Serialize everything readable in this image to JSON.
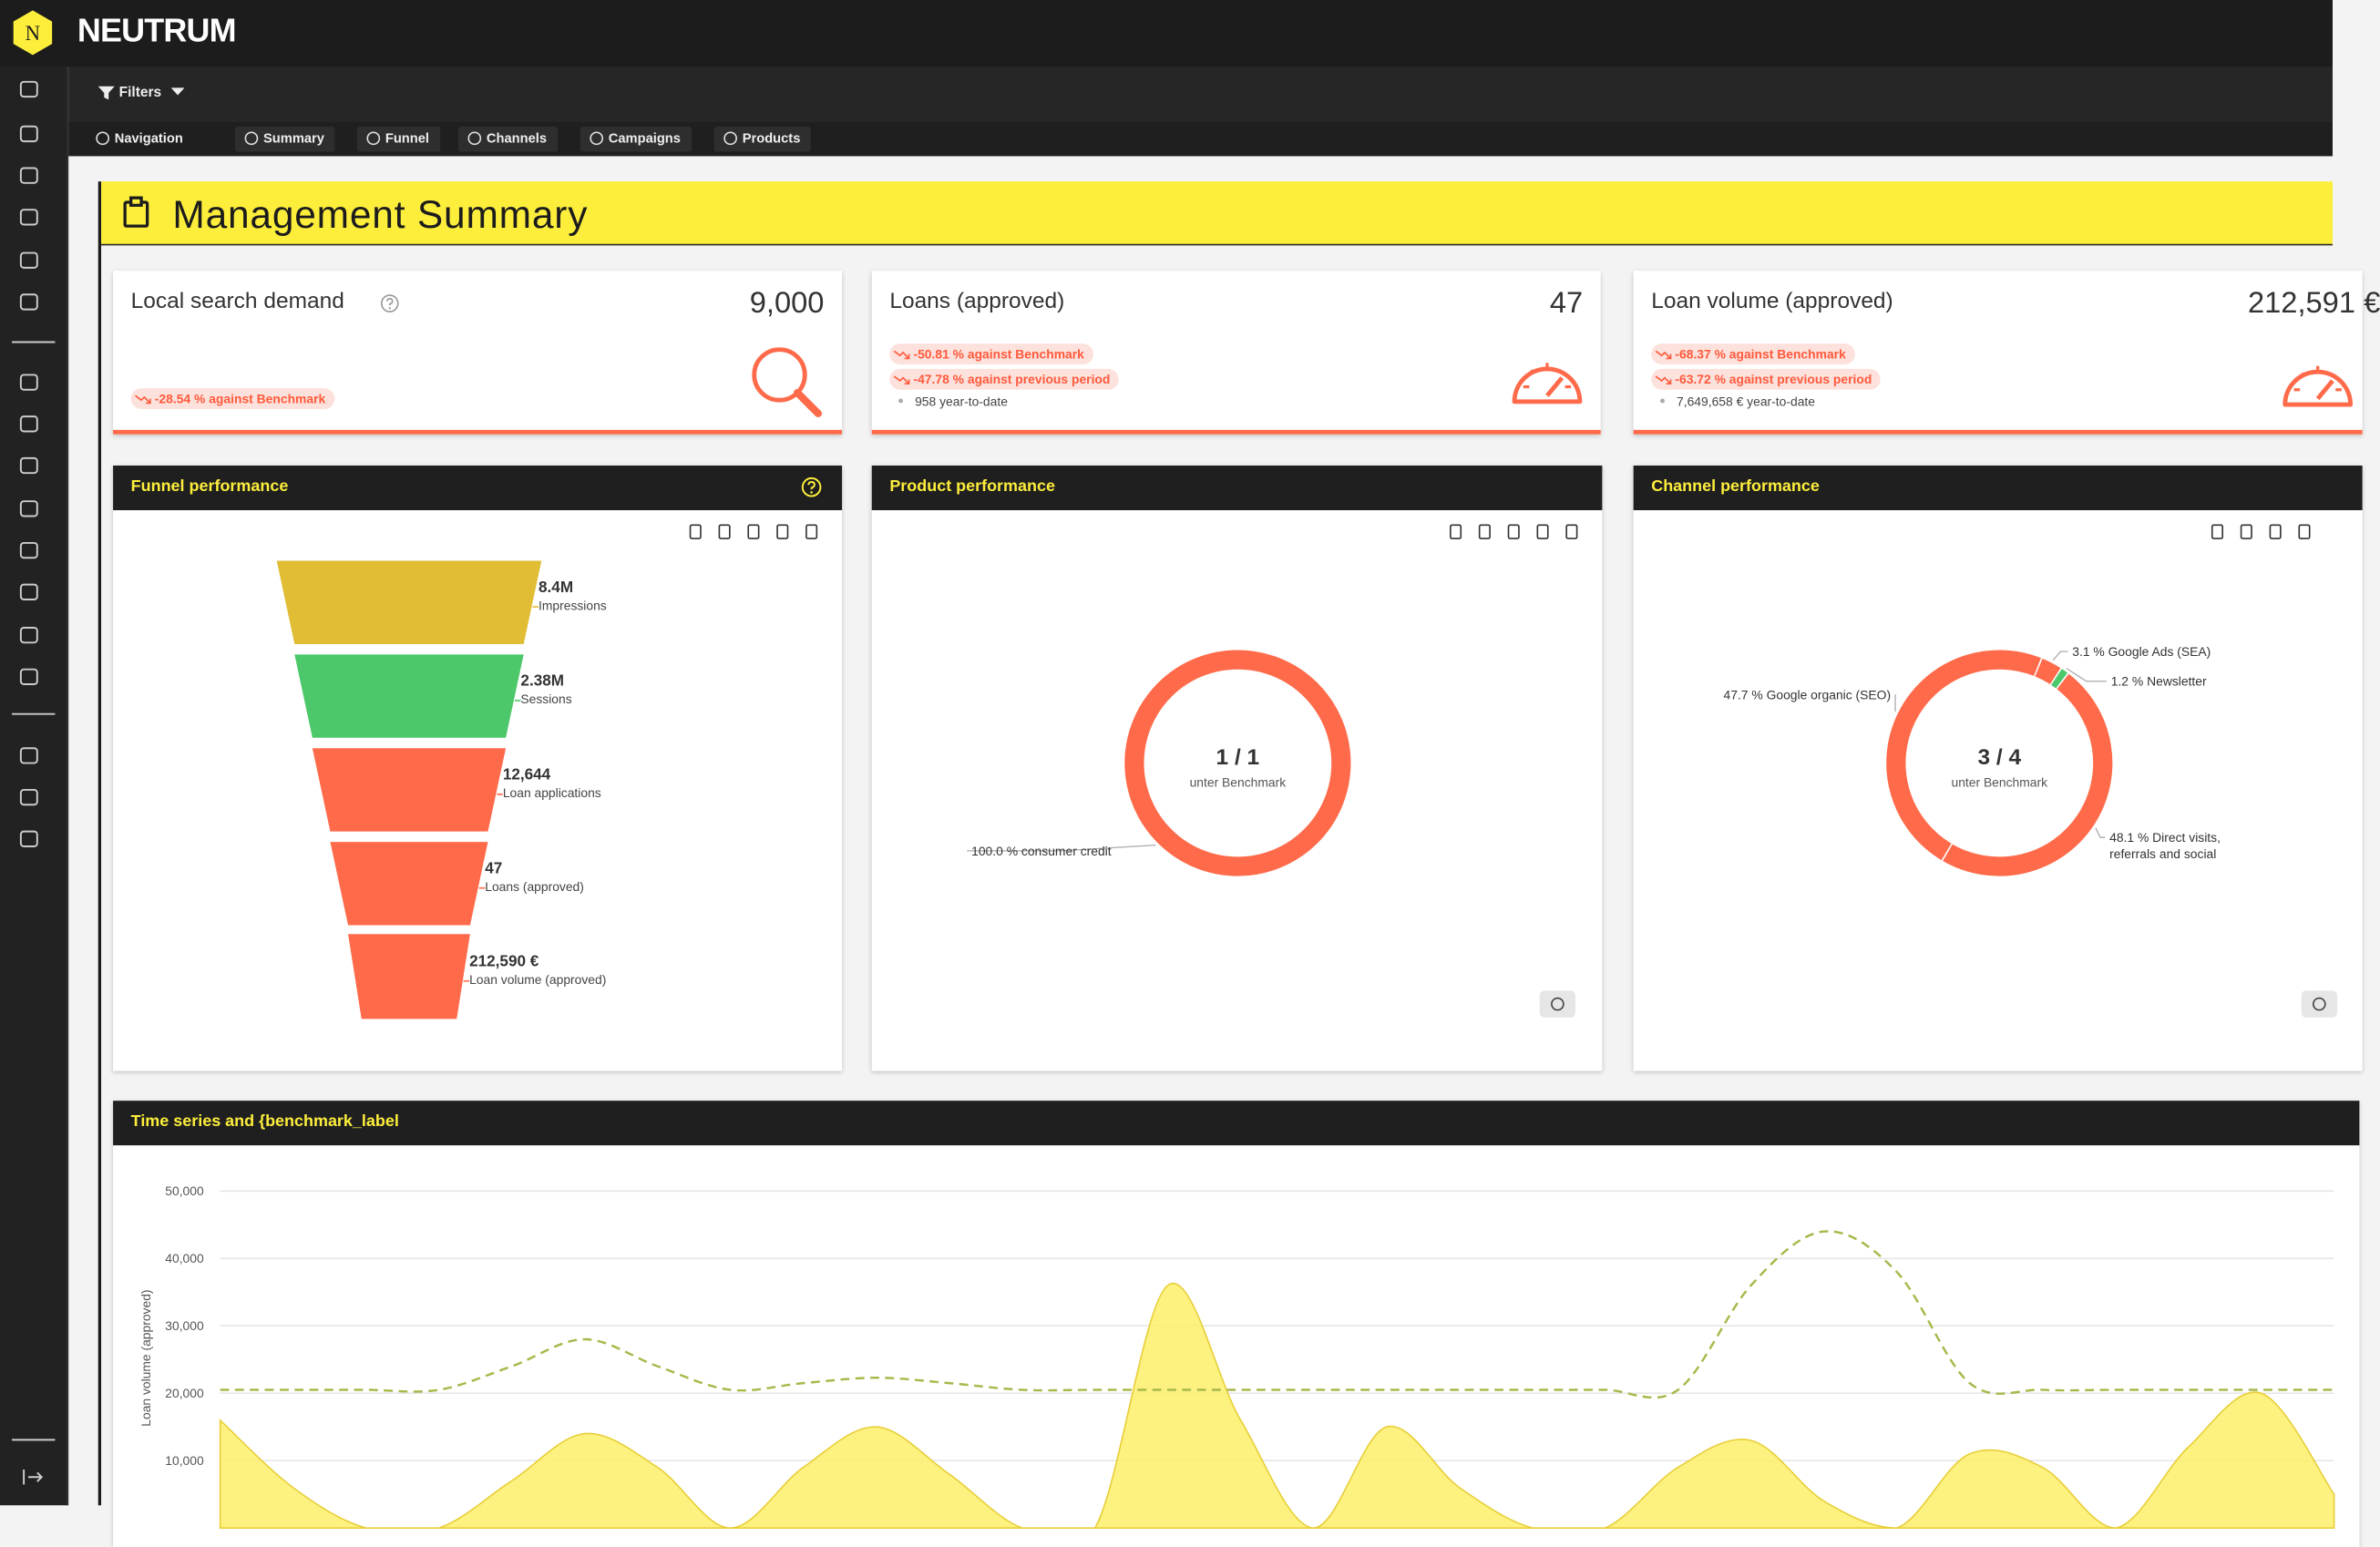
{
  "header": {
    "logo_letter": "N",
    "brand": "NEUTRUM"
  },
  "toolbar": {
    "filters": "Filters"
  },
  "tabs": [
    "Navigation",
    "Summary",
    "Funnel",
    "Channels",
    "Campaigns",
    "Products"
  ],
  "page_title": "Management Summary",
  "kpis": [
    {
      "title": "Local search demand",
      "value": "9,000",
      "badges": [
        "-28.54 % against Benchmark"
      ]
    },
    {
      "title": "Loans (approved)",
      "value": "47",
      "badges": [
        "-50.81 % against Benchmark",
        "-47.78 % against previous period"
      ],
      "ytd": "958 year-to-date"
    },
    {
      "title": "Loan volume (approved)",
      "value": "212,591 €",
      "badges": [
        "-68.37 % against Benchmark",
        "-63.72 % against previous period"
      ],
      "ytd": "7,649,658 € year-to-date"
    }
  ],
  "funnel": {
    "title": "Funnel performance",
    "stages": [
      {
        "value": "8.4M",
        "label": "Impressions"
      },
      {
        "value": "2.38M",
        "label": "Sessions"
      },
      {
        "value": "12,644",
        "label": "Loan applications"
      },
      {
        "value": "47",
        "label": "Loans (approved)"
      },
      {
        "value": "212,590 €",
        "label": "Loan volume (approved)"
      }
    ]
  },
  "chart_data": [
    {
      "type": "pie",
      "title": "Product performance",
      "center_label": "1 / 1",
      "center_sublabel": "unter Benchmark",
      "values": [
        100.0
      ],
      "value_labels": [
        "100.0 % consumer credit"
      ],
      "colors": [
        "#ff6b4a"
      ]
    },
    {
      "type": "pie",
      "title": "Channel performance",
      "center_label": "3 / 4",
      "center_sublabel": "unter Benchmark",
      "values": [
        3.1,
        1.2,
        48.1,
        47.7
      ],
      "value_labels": [
        "3.1 % Google Ads (SEA)",
        "1.2 % Newsletter",
        "48.1 % Direct visits, referrals and social",
        "47.7 % Google organic (SEO)"
      ],
      "colors": [
        "#ff6b4a",
        "#4cc76a",
        "#ff6b4a",
        "#ff6b4a"
      ]
    },
    {
      "type": "area",
      "title": "Time series and {benchmark_label",
      "ylabel": "Loan volume (approved)",
      "ylim": [
        0,
        52500
      ],
      "yticks": [
        {
          "value": 10000,
          "label": "10,000"
        },
        {
          "value": 20000,
          "label": "20,000"
        },
        {
          "value": 30000,
          "label": "30,000"
        },
        {
          "value": 40000,
          "label": "40,000"
        },
        {
          "value": 50000,
          "label": "50,000"
        }
      ],
      "grid": true,
      "series": [
        {
          "color": "#fdee6a",
          "style": "area",
          "values": [
            16000,
            6000,
            0,
            0,
            7000,
            14000,
            9000,
            0,
            9000,
            15000,
            8000,
            0,
            0,
            36000,
            16000,
            0,
            15000,
            6000,
            0,
            0,
            9000,
            13000,
            4000,
            0,
            11000,
            9000,
            0,
            12000,
            20000,
            5000
          ]
        },
        {
          "color": "#a8b84a",
          "style": "dashed",
          "values": [
            20500,
            20500,
            20500,
            20500,
            24000,
            28000,
            24000,
            20500,
            21500,
            22300,
            21500,
            20500,
            20500,
            20500,
            20500,
            20500,
            20500,
            20500,
            20500,
            20500,
            20500,
            36000,
            44000,
            38000,
            21500,
            20500,
            20500,
            20500,
            20500,
            20500
          ]
        }
      ]
    }
  ]
}
